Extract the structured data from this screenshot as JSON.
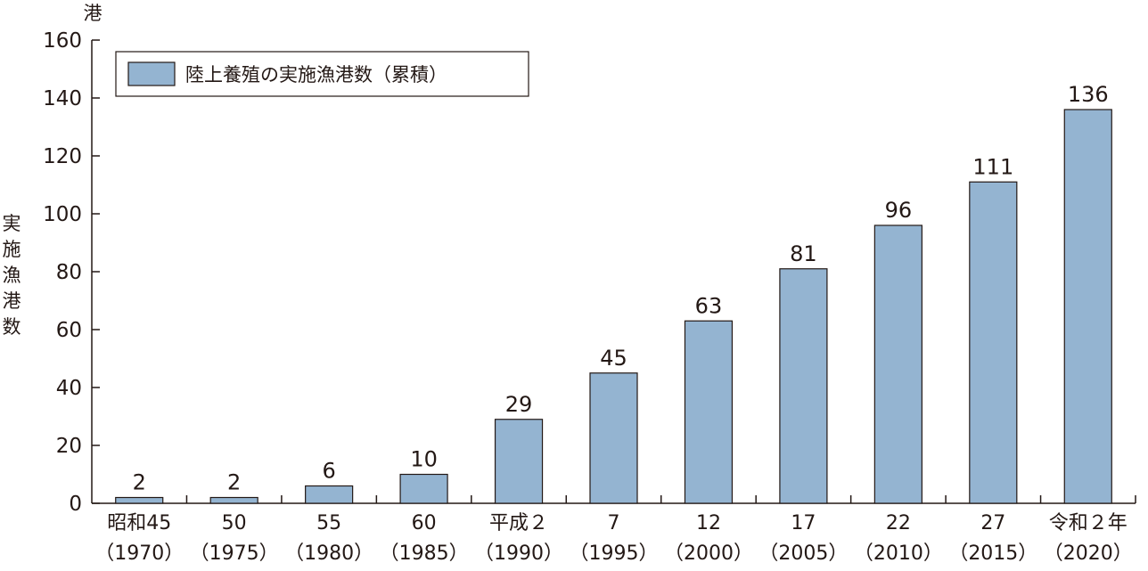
{
  "chart_data": {
    "type": "bar",
    "unit": "港",
    "ylabel": "実施漁港数",
    "ylim": [
      0,
      160
    ],
    "yticks": [
      "0",
      "20",
      "40",
      "60",
      "80",
      "100",
      "120",
      "140",
      "160"
    ],
    "categories": [
      {
        "line1": "昭和45",
        "line2": "（1970）"
      },
      {
        "line1": "50",
        "line2": "（1975）"
      },
      {
        "line1": "55",
        "line2": "（1980）"
      },
      {
        "line1": "60",
        "line2": "（1985）"
      },
      {
        "line1": "平成２",
        "line2": "（1990）"
      },
      {
        "line1": "7",
        "line2": "（1995）"
      },
      {
        "line1": "12",
        "line2": "（2000）"
      },
      {
        "line1": "17",
        "line2": "（2005）"
      },
      {
        "line1": "22",
        "line2": "（2010）"
      },
      {
        "line1": "27",
        "line2": "（2015）"
      },
      {
        "line1": "令和２年",
        "line2": "（2020）"
      }
    ],
    "series": [
      {
        "name": "陸上養殖の実施漁港数（累積）",
        "color": "#94b4d1",
        "values": [
          2,
          2,
          6,
          10,
          29,
          45,
          63,
          81,
          96,
          111,
          136
        ]
      }
    ],
    "legend": "top-left",
    "grid": false
  }
}
